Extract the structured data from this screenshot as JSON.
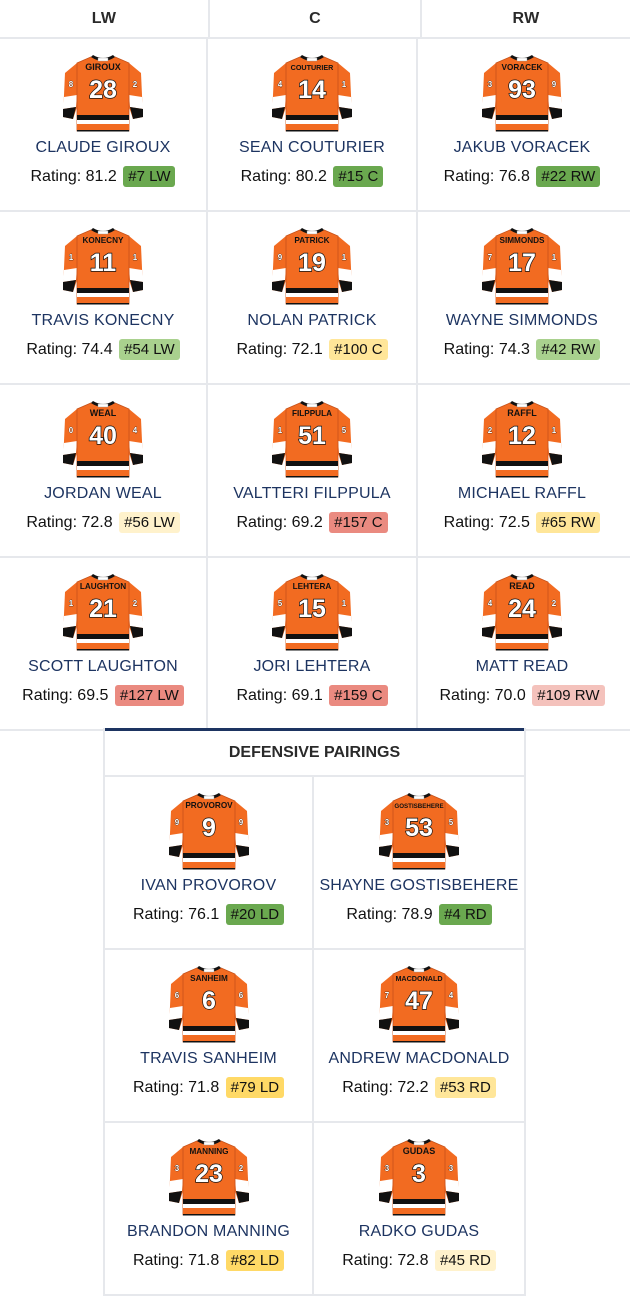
{
  "colors": {
    "orange": "#f26b21",
    "navy_text": "#1d3461",
    "badge_dark_green": "#6aa84f",
    "badge_green": "#a9d18e",
    "badge_yellow": "#ffd966",
    "badge_light_yellow": "#fff2cc",
    "badge_red": "#ea8a80",
    "badge_light_red": "#f4c2bc"
  },
  "forwards": {
    "headers": [
      "LW",
      "C",
      "RW"
    ],
    "lines": [
      [
        {
          "name": "CLAUDE GIROUX",
          "jersey_name": "GIROUX",
          "number": "28",
          "rating_label": "Rating: 81.2",
          "rank": "#7 LW",
          "rank_color": "#6aa84f"
        },
        {
          "name": "SEAN COUTURIER",
          "jersey_name": "COUTURIER",
          "number": "14",
          "rating_label": "Rating: 80.2",
          "rank": "#15 C",
          "rank_color": "#6aa84f"
        },
        {
          "name": "JAKUB VORACEK",
          "jersey_name": "VORACEK",
          "number": "93",
          "rating_label": "Rating: 76.8",
          "rank": "#22 RW",
          "rank_color": "#6aa84f"
        }
      ],
      [
        {
          "name": "TRAVIS KONECNY",
          "jersey_name": "KONECNY",
          "number": "11",
          "rating_label": "Rating: 74.4",
          "rank": "#54 LW",
          "rank_color": "#a9d18e"
        },
        {
          "name": "NOLAN PATRICK",
          "jersey_name": "PATRICK",
          "number": "19",
          "rating_label": "Rating: 72.1",
          "rank": "#100 C",
          "rank_color": "#ffe699"
        },
        {
          "name": "WAYNE SIMMONDS",
          "jersey_name": "SIMMONDS",
          "number": "17",
          "rating_label": "Rating: 74.3",
          "rank": "#42 RW",
          "rank_color": "#a9d18e"
        }
      ],
      [
        {
          "name": "JORDAN WEAL",
          "jersey_name": "WEAL",
          "number": "40",
          "rating_label": "Rating: 72.8",
          "rank": "#56 LW",
          "rank_color": "#fff2cc"
        },
        {
          "name": "VALTTERI FILPPULA",
          "jersey_name": "FILPPULA",
          "number": "51",
          "rating_label": "Rating: 69.2",
          "rank": "#157 C",
          "rank_color": "#ea8a80"
        },
        {
          "name": "MICHAEL RAFFL",
          "jersey_name": "RAFFL",
          "number": "12",
          "rating_label": "Rating: 72.5",
          "rank": "#65 RW",
          "rank_color": "#ffe699"
        }
      ],
      [
        {
          "name": "SCOTT LAUGHTON",
          "jersey_name": "LAUGHTON",
          "number": "21",
          "rating_label": "Rating: 69.5",
          "rank": "#127 LW",
          "rank_color": "#ea8a80"
        },
        {
          "name": "JORI LEHTERA",
          "jersey_name": "LEHTERA",
          "number": "15",
          "rating_label": "Rating: 69.1",
          "rank": "#159 C",
          "rank_color": "#ea8a80"
        },
        {
          "name": "MATT READ",
          "jersey_name": "READ",
          "number": "24",
          "rating_label": "Rating: 70.0",
          "rank": "#109 RW",
          "rank_color": "#f4c2bc"
        }
      ]
    ]
  },
  "defense": {
    "title": "DEFENSIVE PAIRINGS",
    "pairs": [
      [
        {
          "name": "IVAN PROVOROV",
          "jersey_name": "PROVOROV",
          "number": "9",
          "rating_label": "Rating: 76.1",
          "rank": "#20 LD",
          "rank_color": "#6aa84f"
        },
        {
          "name": "SHAYNE GOSTISBEHERE",
          "jersey_name": "GOSTISBEHERE",
          "number": "53",
          "rating_label": "Rating: 78.9",
          "rank": "#4 RD",
          "rank_color": "#6aa84f"
        }
      ],
      [
        {
          "name": "TRAVIS SANHEIM",
          "jersey_name": "SANHEIM",
          "number": "6",
          "rating_label": "Rating: 71.8",
          "rank": "#79 LD",
          "rank_color": "#ffd966"
        },
        {
          "name": "ANDREW MACDONALD",
          "jersey_name": "MACDONALD",
          "number": "47",
          "rating_label": "Rating: 72.2",
          "rank": "#53 RD",
          "rank_color": "#ffe699"
        }
      ],
      [
        {
          "name": "BRANDON MANNING",
          "jersey_name": "MANNING",
          "number": "23",
          "rating_label": "Rating: 71.8",
          "rank": "#82 LD",
          "rank_color": "#ffd966"
        },
        {
          "name": "RADKO GUDAS",
          "jersey_name": "GUDAS",
          "number": "3",
          "rating_label": "Rating: 72.8",
          "rank": "#45 RD",
          "rank_color": "#fff2cc"
        }
      ]
    ]
  }
}
